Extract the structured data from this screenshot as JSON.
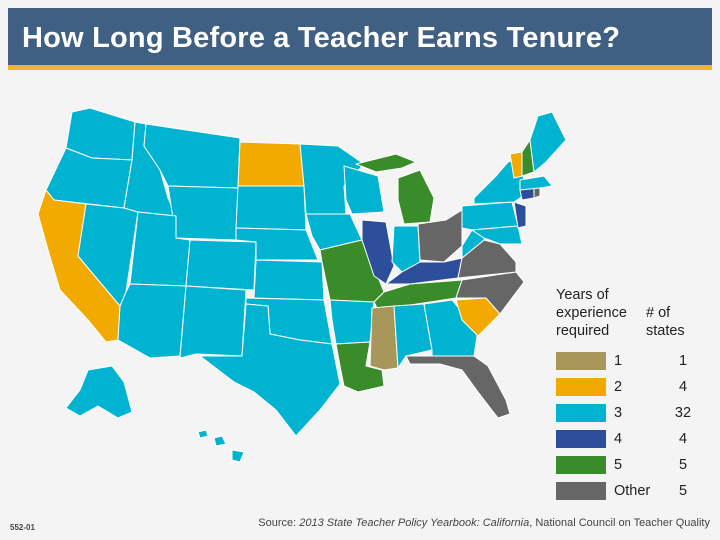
{
  "title": "How Long Before a Teacher Earns Tenure?",
  "legend": {
    "heading_years": "Years of experience required",
    "heading_count": "# of states",
    "rows": [
      {
        "label": "1",
        "count": "1",
        "color": "#a8965a"
      },
      {
        "label": "2",
        "count": "4",
        "color": "#f2a900"
      },
      {
        "label": "3",
        "count": "32",
        "color": "#00b3d1"
      },
      {
        "label": "4",
        "count": "4",
        "color": "#2d4f9b"
      },
      {
        "label": "5",
        "count": "5",
        "color": "#3a8c2a"
      },
      {
        "label": "Other",
        "count": "5",
        "color": "#666666"
      }
    ]
  },
  "source": {
    "prefix": "Source: ",
    "italic": "2013 State Teacher Policy Yearbook: California",
    "suffix": ", National Council on Teacher Quality"
  },
  "code": "552-01",
  "states": {
    "1": [
      "Mississippi"
    ],
    "2": [
      "California",
      "North Dakota",
      "Vermont",
      "South Carolina"
    ],
    "4": [
      "Illinois",
      "Kentucky",
      "Connecticut",
      "New Jersey"
    ],
    "5": [
      "Michigan",
      "Missouri",
      "Tennessee",
      "Louisiana",
      "New Hampshire"
    ],
    "Other": [
      "Ohio",
      "Virginia",
      "North Carolina",
      "Florida",
      "Rhode Island"
    ]
  },
  "colors": {
    "title_bar": "#3f5f83",
    "title_rule": "#e9b53a",
    "border": "#ffffff"
  }
}
